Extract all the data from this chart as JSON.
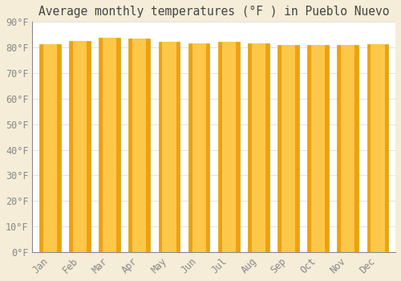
{
  "title": "Average monthly temperatures (°F ) in Pueblo Nuevo",
  "months": [
    "Jan",
    "Feb",
    "Mar",
    "Apr",
    "May",
    "Jun",
    "Jul",
    "Aug",
    "Sep",
    "Oct",
    "Nov",
    "Dec"
  ],
  "values": [
    81.3,
    82.4,
    83.8,
    83.5,
    82.2,
    81.6,
    82.1,
    81.6,
    81.1,
    81.0,
    81.1,
    81.4
  ],
  "bar_color_light": "#FDC84A",
  "bar_color_dark": "#F0A010",
  "background_color": "#FFFFFF",
  "fig_background_color": "#F5EDD8",
  "grid_color": "#DDDDDD",
  "ylim": [
    0,
    90
  ],
  "yticks": [
    0,
    10,
    20,
    30,
    40,
    50,
    60,
    70,
    80,
    90
  ],
  "ytick_labels": [
    "0°F",
    "10°F",
    "20°F",
    "30°F",
    "40°F",
    "50°F",
    "60°F",
    "70°F",
    "80°F",
    "90°F"
  ],
  "title_fontsize": 10.5,
  "tick_fontsize": 8.5,
  "font_family": "monospace",
  "bar_width": 0.72
}
